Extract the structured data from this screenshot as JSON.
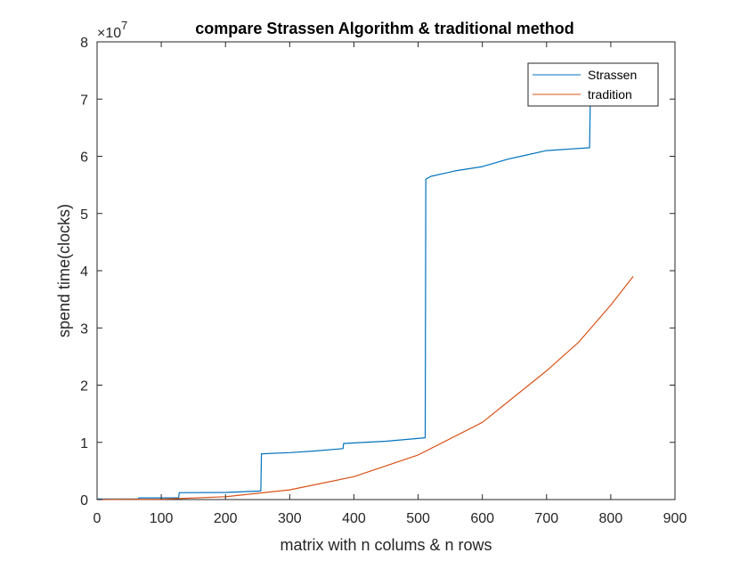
{
  "chart_data": {
    "type": "line",
    "title": "compare Strassen Algorithm & traditional method",
    "xlabel": "matrix with n colums & n rows",
    "ylabel": "spend time(clocks)",
    "xlim": [
      0,
      900
    ],
    "ylim": [
      0,
      80000000
    ],
    "x_ticks": [
      0,
      100,
      200,
      300,
      400,
      500,
      600,
      700,
      800,
      900
    ],
    "y_ticks": [
      0,
      1,
      2,
      3,
      4,
      5,
      6,
      7,
      8
    ],
    "y_exponent_base": "×10",
    "y_exponent_power": "7",
    "grid": false,
    "legend_position": "top-right",
    "series": [
      {
        "name": "Strassen",
        "color": "#0072BD",
        "x": [
          1,
          64,
          65,
          127,
          128,
          200,
          255,
          256,
          300,
          340,
          383,
          384,
          450,
          511,
          512,
          520,
          560,
          600,
          640,
          660,
          700,
          767,
          768,
          790,
          800
        ],
        "y": [
          100000,
          100000,
          300000,
          300000,
          1200000,
          1250000,
          1500000,
          8000000,
          8200000,
          8500000,
          8900000,
          9800000,
          10200000,
          10800000,
          56000000,
          56500000,
          57500000,
          58200000,
          59500000,
          60000000,
          61000000,
          61500000,
          69000000,
          68800000,
          69000000
        ]
      },
      {
        "name": "tradition",
        "color": "#D95319",
        "x": [
          1,
          100,
          200,
          300,
          400,
          500,
          600,
          650,
          700,
          750,
          800,
          835
        ],
        "y": [
          0,
          60000,
          500000,
          1700000,
          4000000,
          7800000,
          13500000,
          18000000,
          22500000,
          27500000,
          34000000,
          39000000
        ]
      }
    ]
  }
}
